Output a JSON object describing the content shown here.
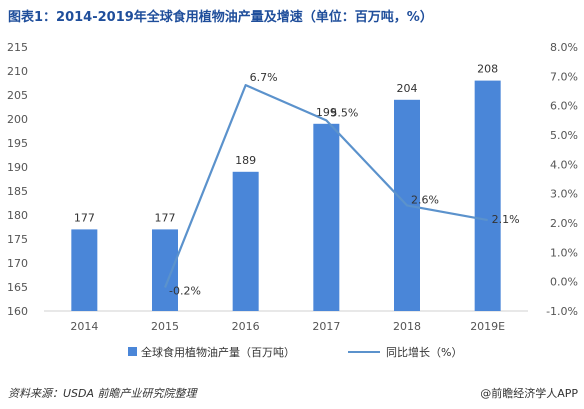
{
  "header": {
    "title": "图表1：2014-2019年全球食用植物油产量及增速（单位：百万吨，%）"
  },
  "footer": {
    "source": "资料来源：USDA 前瞻产业研究院整理",
    "credit": "@前瞻经济学人APP"
  },
  "colors": {
    "bar": "#4a86d8",
    "line": "#5b92cc",
    "title": "#1f4e9b",
    "axis_text": "#555555"
  },
  "chart_data": {
    "type": "bar",
    "categories": [
      "2014",
      "2015",
      "2016",
      "2017",
      "2018",
      "2019E"
    ],
    "series": [
      {
        "name": "全球食用植物油产量（百万吨）",
        "type": "bar",
        "axis": "left",
        "values": [
          177,
          177,
          189,
          199,
          204,
          208
        ],
        "labels": [
          "177",
          "177",
          "189",
          "199",
          "204",
          "208"
        ]
      },
      {
        "name": "同比增长（%）",
        "type": "line",
        "axis": "right",
        "values": [
          null,
          -0.2,
          6.7,
          5.5,
          2.6,
          2.1
        ],
        "labels": [
          "",
          "-0.2%",
          "6.7%",
          "5.5%",
          "2.6%",
          "2.1%"
        ]
      }
    ],
    "y_left": {
      "min": 160,
      "max": 215,
      "ticks": [
        "160",
        "165",
        "170",
        "175",
        "180",
        "185",
        "190",
        "195",
        "200",
        "205",
        "210",
        "215"
      ]
    },
    "y_right": {
      "min": -1.0,
      "max": 8.0,
      "ticks": [
        "-1.0%",
        "0.0%",
        "1.0%",
        "2.0%",
        "3.0%",
        "4.0%",
        "5.0%",
        "6.0%",
        "7.0%",
        "8.0%"
      ]
    },
    "legend": {
      "position": "bottom",
      "items": [
        "全球食用植物油产量（百万吨）",
        "同比增长（%）"
      ]
    },
    "grid": false
  }
}
